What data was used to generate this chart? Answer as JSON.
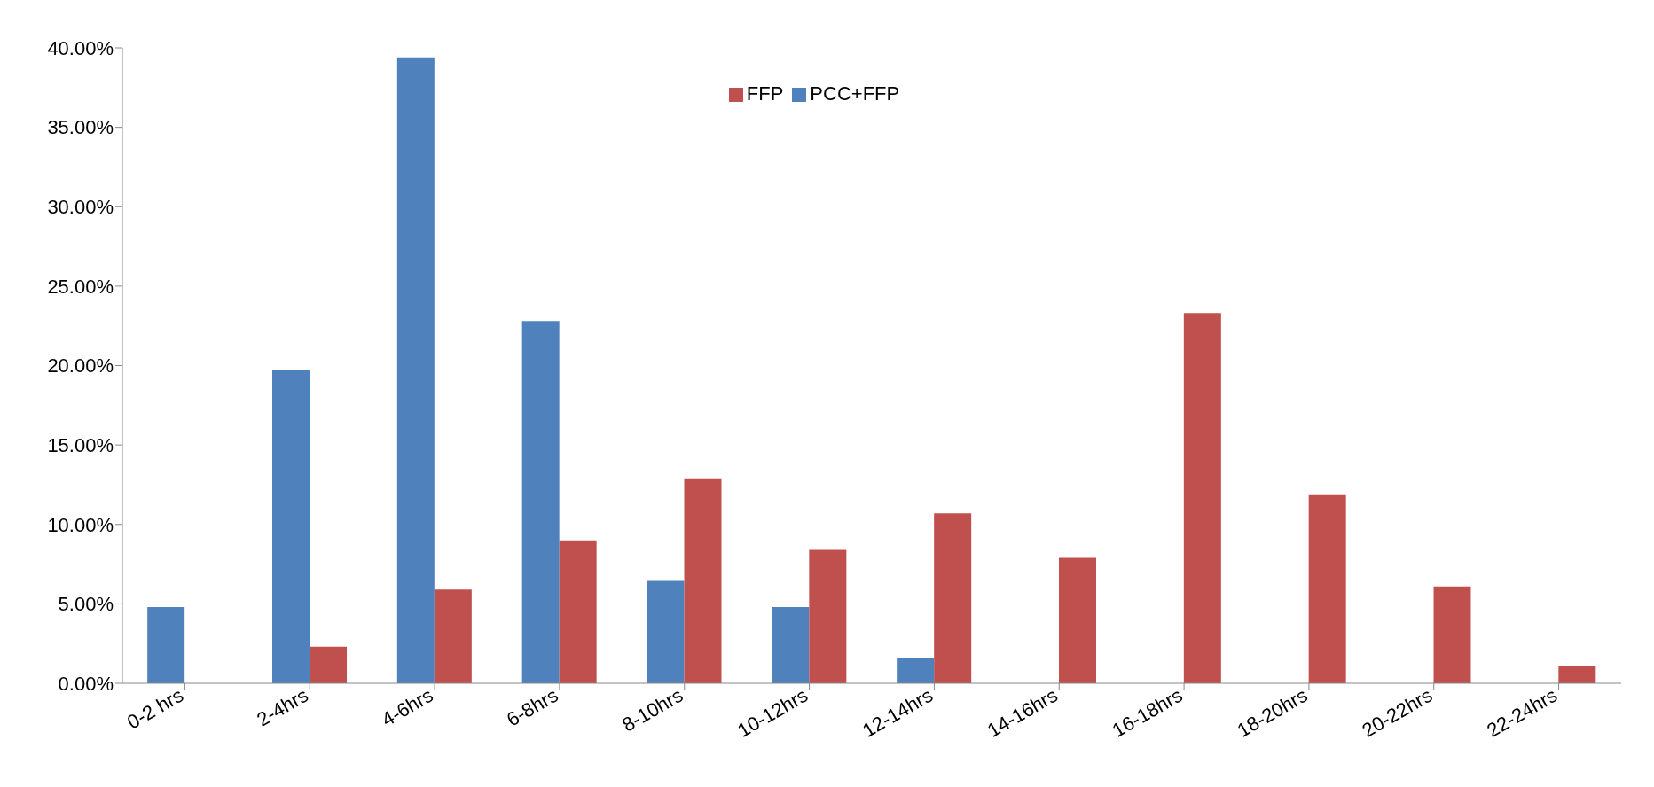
{
  "chart_data": {
    "type": "bar",
    "categories": [
      "0-2 hrs",
      "2-4hrs",
      "4-6hrs",
      "6-8hrs",
      "8-10hrs",
      "10-12hrs",
      "12-14hrs",
      "14-16hrs",
      "16-18hrs",
      "18-20hrs",
      "20-22hrs",
      "22-24hrs"
    ],
    "series": [
      {
        "name": "PCC+FFP",
        "color": "#4f81bd",
        "values": [
          4.8,
          19.7,
          39.4,
          22.8,
          6.5,
          4.8,
          1.6,
          null,
          null,
          null,
          null,
          null
        ]
      },
      {
        "name": "FFP",
        "color": "#c0504d",
        "values": [
          null,
          2.3,
          5.9,
          9.0,
          12.9,
          8.4,
          10.7,
          7.9,
          23.3,
          11.9,
          6.1,
          1.1
        ]
      }
    ],
    "ylim": [
      0,
      40
    ],
    "yticks": [
      {
        "value": 0,
        "label": "0.00%"
      },
      {
        "value": 5,
        "label": "5.00%"
      },
      {
        "value": 10,
        "label": "10.00%"
      },
      {
        "value": 15,
        "label": "15.00%"
      },
      {
        "value": 20,
        "label": "20.00%"
      },
      {
        "value": 25,
        "label": "25.00%"
      },
      {
        "value": 30,
        "label": "30.00%"
      },
      {
        "value": 35,
        "label": "35.00%"
      },
      {
        "value": 40,
        "label": "40.00%"
      }
    ],
    "grid": false,
    "legend": "top"
  }
}
